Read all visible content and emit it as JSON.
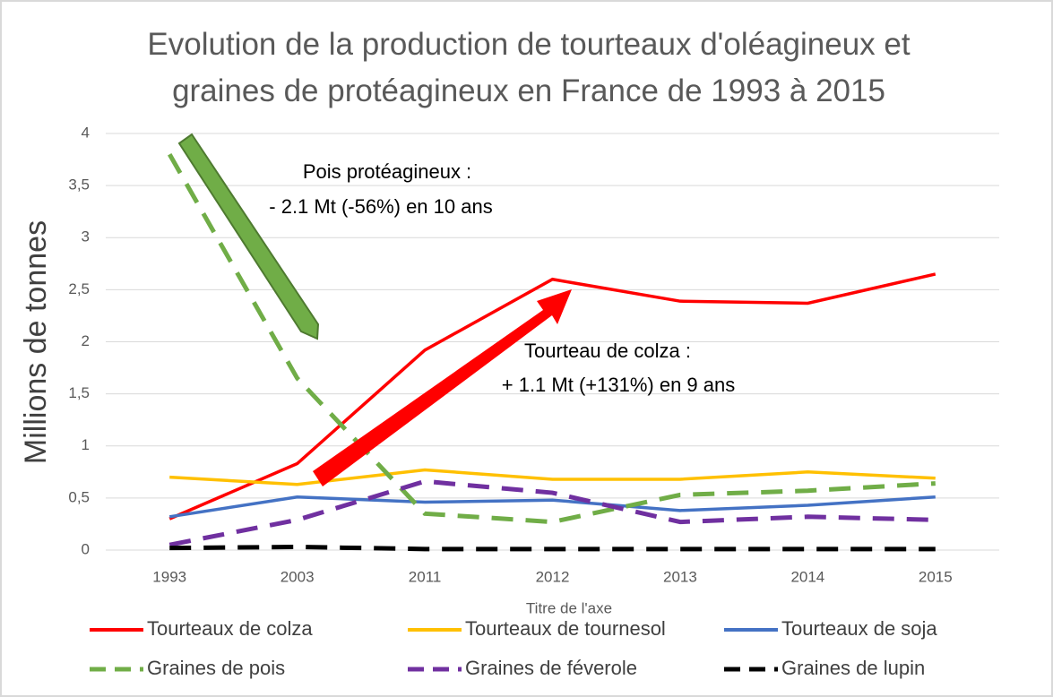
{
  "chart_data": {
    "type": "line",
    "title": "Evolution de la production de tourteaux d'oléagineux et graines de protéagineux en France de 1993 à 2015",
    "x_label": "Titre de l'axe",
    "y_label": "Millions de tonnes",
    "categories": [
      "1993",
      "2003",
      "2011",
      "2012",
      "2013",
      "2014",
      "2015"
    ],
    "ylim": [
      0,
      4
    ],
    "yticks": [
      0,
      {
        "value": 0.5,
        "label": "0,5"
      },
      1,
      {
        "value": 1.5,
        "label": "1,5"
      },
      2,
      {
        "value": 2.5,
        "label": "2,5"
      },
      3,
      {
        "value": 3.5,
        "label": "3,5"
      },
      4
    ],
    "grid": true,
    "legend": "bottom",
    "series": [
      {
        "name": "Tourteaux de colza",
        "color": "#ff0000",
        "dashed": false,
        "values": [
          0.3,
          0.83,
          1.92,
          2.6,
          2.39,
          2.37,
          2.65
        ]
      },
      {
        "name": "Tourteaux de tournesol",
        "color": "#ffc000",
        "dashed": false,
        "values": [
          0.7,
          0.63,
          0.77,
          0.68,
          0.68,
          0.75,
          0.69
        ]
      },
      {
        "name": "Tourteaux de soja",
        "color": "#4472c4",
        "dashed": false,
        "values": [
          0.32,
          0.51,
          0.46,
          0.48,
          0.38,
          0.43,
          0.51
        ]
      },
      {
        "name": "Graines de pois",
        "color": "#70ad47",
        "dashed": true,
        "values": [
          3.8,
          1.65,
          0.35,
          0.27,
          0.53,
          0.57,
          0.64
        ]
      },
      {
        "name": "Graines de féverole",
        "color": "#7030a0",
        "dashed": true,
        "values": [
          0.05,
          0.29,
          0.66,
          0.55,
          0.27,
          0.32,
          0.29
        ]
      },
      {
        "name": "Graines de lupin",
        "color": "#000000",
        "dashed": true,
        "values": [
          0.02,
          0.03,
          0.01,
          0.01,
          0.01,
          0.01,
          0.01
        ]
      }
    ],
    "annotations": [
      {
        "text": [
          "Pois protéagineux :",
          "- 2.1 Mt (-56%) en 10 ans"
        ]
      },
      {
        "text": [
          "Tourteau de colza :",
          "+ 1.1 Mt (+131%) en 9 ans"
        ]
      }
    ]
  }
}
